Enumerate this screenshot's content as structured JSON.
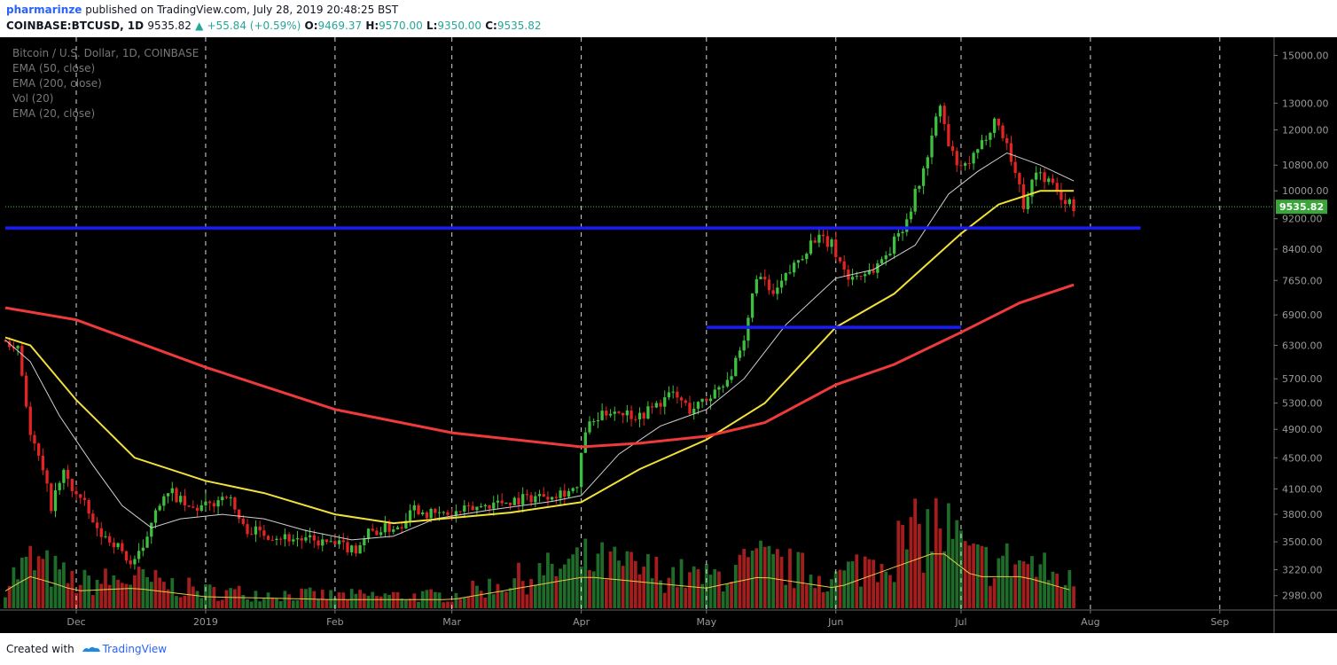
{
  "header": {
    "publisher": "pharmarinze",
    "published_text": "published on TradingView.com, July 28, 2019 20:48:25 BST",
    "symbol": "COINBASE:BTCUSD, 1D",
    "last": "9535.82",
    "change": "+55.84 (+0.59%)",
    "o_label": "O:",
    "o_value": "9469.37",
    "h_label": "H:",
    "h_value": "9570.00",
    "l_label": "L:",
    "l_value": "9350.00",
    "c_label": "C:",
    "c_value": "9535.82",
    "up_arrow": "▲"
  },
  "legend": {
    "title": "Bitcoin / U.S. Dollar, 1D, COINBASE",
    "ema50": "EMA (50, close)",
    "ema200": "EMA (200, close)",
    "vol": "Vol (20)",
    "ema20": "EMA (20, close)"
  },
  "footer": {
    "created_with": "Created with",
    "brand": "TradingView"
  },
  "chart_data": {
    "type": "candlestick",
    "title": "Bitcoin / U.S. Dollar, 1D, COINBASE",
    "y_scale": "log",
    "ylim": [
      2900,
      15500
    ],
    "y_ticks": [
      15000,
      13000,
      12000,
      10800,
      10000,
      9200,
      8400,
      7650,
      6900,
      6300,
      5700,
      5300,
      4900,
      4500,
      4100,
      3800,
      3500,
      3220,
      2980
    ],
    "y_tick_labels": [
      "15000.00",
      "13000.00",
      "12000.00",
      "10800.00",
      "10000.00",
      "9200.00",
      "8400.00",
      "7650.00",
      "6900.00",
      "6300.00",
      "5700.00",
      "5300.00",
      "4900.00",
      "4500.00",
      "4100.00",
      "3800.00",
      "3500.00",
      "3220.00",
      "2980.00"
    ],
    "x_start": "2018-11-14",
    "x_end": "2019-09-14",
    "x_ticks": [
      {
        "date": "2018-12-01",
        "label": "Dec"
      },
      {
        "date": "2019-01-01",
        "label": "2019"
      },
      {
        "date": "2019-02-01",
        "label": "Feb"
      },
      {
        "date": "2019-03-01",
        "label": "Mar"
      },
      {
        "date": "2019-04-01",
        "label": "Apr"
      },
      {
        "date": "2019-05-01",
        "label": "May"
      },
      {
        "date": "2019-06-01",
        "label": "Jun"
      },
      {
        "date": "2019-07-01",
        "label": "Jul"
      },
      {
        "date": "2019-08-01",
        "label": "Aug"
      },
      {
        "date": "2019-09-01",
        "label": "Sep"
      }
    ],
    "last_price": 9535.82,
    "last_price_label": "9535.82",
    "price_path": [
      [
        "2018-11-14",
        6400
      ],
      [
        "2018-11-17",
        6300
      ],
      [
        "2018-11-20",
        4800
      ],
      [
        "2018-11-22",
        4500
      ],
      [
        "2018-11-25",
        3900
      ],
      [
        "2018-11-28",
        4300
      ],
      [
        "2018-11-30",
        4100
      ],
      [
        "2018-12-03",
        3900
      ],
      [
        "2018-12-06",
        3600
      ],
      [
        "2018-12-10",
        3500
      ],
      [
        "2018-12-14",
        3280
      ],
      [
        "2018-12-17",
        3400
      ],
      [
        "2018-12-20",
        3900
      ],
      [
        "2018-12-24",
        4050
      ],
      [
        "2018-12-28",
        3850
      ],
      [
        "2019-01-02",
        3900
      ],
      [
        "2019-01-06",
        4050
      ],
      [
        "2019-01-10",
        3650
      ],
      [
        "2019-01-14",
        3600
      ],
      [
        "2019-01-20",
        3550
      ],
      [
        "2019-01-28",
        3500
      ],
      [
        "2019-02-06",
        3430
      ],
      [
        "2019-02-09",
        3600
      ],
      [
        "2019-02-17",
        3680
      ],
      [
        "2019-02-19",
        3900
      ],
      [
        "2019-02-24",
        3800
      ],
      [
        "2019-03-01",
        3800
      ],
      [
        "2019-03-10",
        3920
      ],
      [
        "2019-03-20",
        4000
      ],
      [
        "2019-03-31",
        4100
      ],
      [
        "2019-04-02",
        4900
      ],
      [
        "2019-04-08",
        5200
      ],
      [
        "2019-04-15",
        5100
      ],
      [
        "2019-04-23",
        5450
      ],
      [
        "2019-04-27",
        5200
      ],
      [
        "2019-05-01",
        5350
      ],
      [
        "2019-05-07",
        5800
      ],
      [
        "2019-05-10",
        6300
      ],
      [
        "2019-05-13",
        7800
      ],
      [
        "2019-05-17",
        7300
      ],
      [
        "2019-05-22",
        8000
      ],
      [
        "2019-05-27",
        8700
      ],
      [
        "2019-05-31",
        8500
      ],
      [
        "2019-06-04",
        7700
      ],
      [
        "2019-06-10",
        7900
      ],
      [
        "2019-06-14",
        8400
      ],
      [
        "2019-06-18",
        9200
      ],
      [
        "2019-06-22",
        10600
      ],
      [
        "2019-06-26",
        12900
      ],
      [
        "2019-06-28",
        11400
      ],
      [
        "2019-07-01",
        10600
      ],
      [
        "2019-07-05",
        11200
      ],
      [
        "2019-07-09",
        12400
      ],
      [
        "2019-07-12",
        11500
      ],
      [
        "2019-07-16",
        9600
      ],
      [
        "2019-07-19",
        10600
      ],
      [
        "2019-07-22",
        10300
      ],
      [
        "2019-07-25",
        9800
      ],
      [
        "2019-07-28",
        9535.82
      ]
    ],
    "series": [
      {
        "name": "EMA (20, close)",
        "color": "#d0d0d0",
        "points": [
          [
            "2018-11-14",
            6400
          ],
          [
            "2018-11-20",
            6000
          ],
          [
            "2018-11-27",
            5100
          ],
          [
            "2018-12-05",
            4400
          ],
          [
            "2018-12-12",
            3900
          ],
          [
            "2018-12-19",
            3650
          ],
          [
            "2018-12-26",
            3750
          ],
          [
            "2019-01-05",
            3800
          ],
          [
            "2019-01-15",
            3750
          ],
          [
            "2019-01-25",
            3620
          ],
          [
            "2019-02-05",
            3520
          ],
          [
            "2019-02-15",
            3560
          ],
          [
            "2019-02-25",
            3750
          ],
          [
            "2019-03-10",
            3850
          ],
          [
            "2019-03-25",
            3950
          ],
          [
            "2019-04-01",
            4020
          ],
          [
            "2019-04-10",
            4550
          ],
          [
            "2019-04-20",
            4950
          ],
          [
            "2019-05-01",
            5200
          ],
          [
            "2019-05-10",
            5700
          ],
          [
            "2019-05-20",
            6700
          ],
          [
            "2019-06-01",
            7700
          ],
          [
            "2019-06-10",
            7900
          ],
          [
            "2019-06-20",
            8500
          ],
          [
            "2019-06-28",
            9900
          ],
          [
            "2019-07-05",
            10600
          ],
          [
            "2019-07-12",
            11200
          ],
          [
            "2019-07-20",
            10800
          ],
          [
            "2019-07-28",
            10300
          ]
        ]
      },
      {
        "name": "EMA (50, close)",
        "color": "#f2e03a",
        "points": [
          [
            "2018-11-14",
            6450
          ],
          [
            "2018-11-20",
            6300
          ],
          [
            "2018-12-01",
            5350
          ],
          [
            "2018-12-15",
            4500
          ],
          [
            "2019-01-01",
            4200
          ],
          [
            "2019-01-15",
            4050
          ],
          [
            "2019-02-01",
            3800
          ],
          [
            "2019-02-15",
            3700
          ],
          [
            "2019-03-01",
            3760
          ],
          [
            "2019-03-15",
            3820
          ],
          [
            "2019-04-01",
            3940
          ],
          [
            "2019-04-15",
            4350
          ],
          [
            "2019-05-01",
            4750
          ],
          [
            "2019-05-15",
            5300
          ],
          [
            "2019-06-01",
            6650
          ],
          [
            "2019-06-15",
            7350
          ],
          [
            "2019-07-01",
            8800
          ],
          [
            "2019-07-10",
            9600
          ],
          [
            "2019-07-20",
            10000
          ],
          [
            "2019-07-28",
            10000
          ]
        ]
      },
      {
        "name": "EMA (200, close)",
        "color": "#ee3a3a",
        "points": [
          [
            "2018-11-14",
            7050
          ],
          [
            "2018-12-01",
            6800
          ],
          [
            "2019-01-01",
            5900
          ],
          [
            "2019-02-01",
            5200
          ],
          [
            "2019-03-01",
            4850
          ],
          [
            "2019-04-01",
            4650
          ],
          [
            "2019-04-15",
            4700
          ],
          [
            "2019-05-01",
            4800
          ],
          [
            "2019-05-15",
            5000
          ],
          [
            "2019-06-01",
            5600
          ],
          [
            "2019-06-15",
            5950
          ],
          [
            "2019-07-01",
            6550
          ],
          [
            "2019-07-15",
            7150
          ],
          [
            "2019-07-28",
            7550
          ]
        ]
      }
    ],
    "horizontal_lines": [
      {
        "price": 8950,
        "from": "2018-11-14",
        "to": "2019-08-13",
        "color": "#1a1aff"
      },
      {
        "price": 6650,
        "from": "2019-05-01",
        "to": "2019-07-01",
        "color": "#1a1aff"
      }
    ],
    "volume": {
      "relative_bursts": [
        [
          "2018-11-15",
          0.35
        ],
        [
          "2018-11-20",
          0.55
        ],
        [
          "2018-11-25",
          0.45
        ],
        [
          "2018-12-01",
          0.3
        ],
        [
          "2018-12-15",
          0.35
        ],
        [
          "2019-01-01",
          0.2
        ],
        [
          "2019-02-01",
          0.15
        ],
        [
          "2019-03-01",
          0.15
        ],
        [
          "2019-04-02",
          0.55
        ],
        [
          "2019-05-01",
          0.35
        ],
        [
          "2019-05-14",
          0.55
        ],
        [
          "2019-06-01",
          0.35
        ],
        [
          "2019-06-26",
          1.0
        ],
        [
          "2019-07-04",
          0.55
        ],
        [
          "2019-07-16",
          0.55
        ],
        [
          "2019-07-28",
          0.3
        ]
      ]
    }
  }
}
